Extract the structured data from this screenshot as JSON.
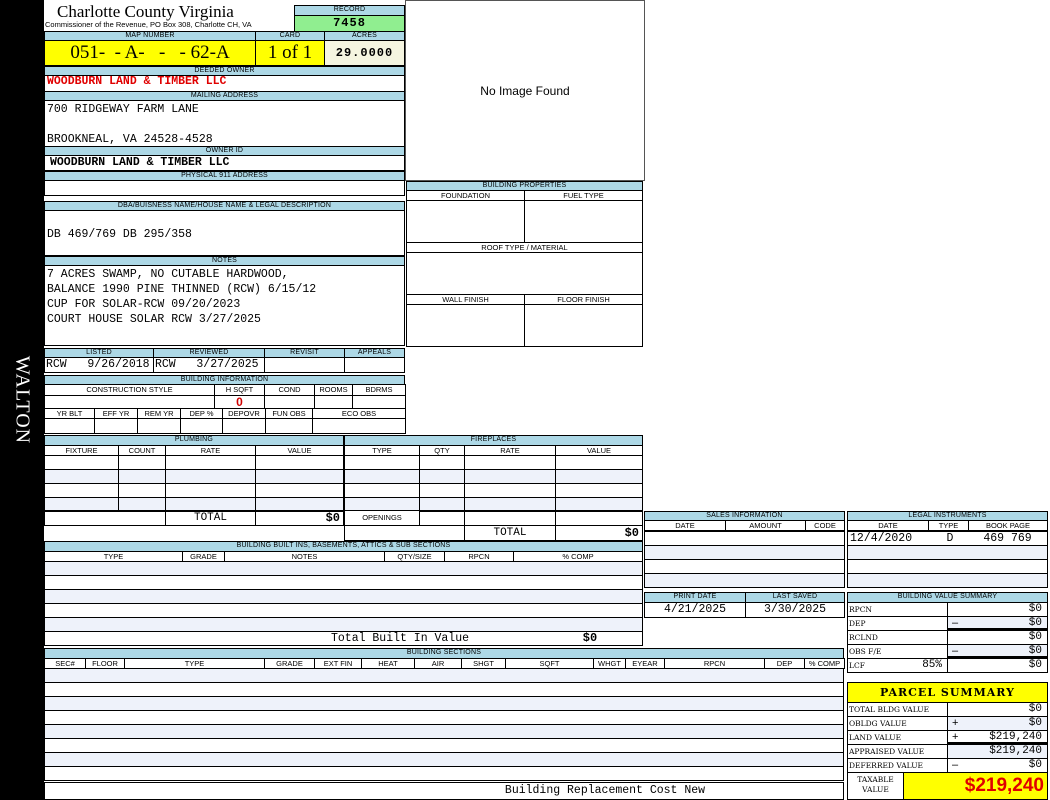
{
  "district": "WALTON",
  "header": {
    "county_title": "Charlotte County Virginia",
    "subtitle": "Commissioner of the Revenue, PO Box 308, Charlotte CH, VA",
    "record_label": "RECORD",
    "record_value": "7458"
  },
  "parcel": {
    "map_number_label": "MAP NUMBER",
    "map_number": "051-  - A-   -   - 62-A",
    "card_label": "CARD",
    "card": "1 of 1",
    "acres_label": "ACRES",
    "acres": "29.0000"
  },
  "owner": {
    "deeded_owner_label": "DEEDED OWNER",
    "deeded_owner": "WOODBURN LAND & TIMBER LLC",
    "mailing_address_label": "MAILING ADDRESS",
    "address_line1": "700 RIDGEWAY FARM LANE",
    "address_line2": "BROOKNEAL, VA 24528-4528",
    "owner_id_label": "OWNER ID",
    "owner_id": "WOODBURN LAND & TIMBER LLC",
    "physical_address_label": "PHYSICAL 911 ADDRESS",
    "physical_address": ""
  },
  "image": {
    "no_image_text": "No Image Found"
  },
  "legal_desc": {
    "label": "DBA/BUISNESS NAME/HOUSE NAME & LEGAL DESCRIPTION",
    "value": "DB 469/769 DB 295/358"
  },
  "notes": {
    "label": "NOTES",
    "lines": [
      "7 ACRES SWAMP, NO CUTABLE HARDWOOD,",
      "BALANCE 1990 PINE THINNED (RCW) 6/15/12",
      "CUP FOR SOLAR-RCW 09/20/2023",
      "COURT HOUSE SOLAR RCW 3/27/2025"
    ]
  },
  "review": {
    "listed_label": "LISTED",
    "listed": "RCW   9/26/2018",
    "reviewed_label": "REVIEWED",
    "reviewed": "RCW   3/27/2025",
    "revisit_label": "REVISIT",
    "appeals_label": "APPEALS"
  },
  "building_info": {
    "label": "BUILDING INFORMATION",
    "headers1": [
      "CONSTRUCTION STYLE",
      "H SQFT",
      "COND",
      "ROOMS",
      "BDRMS"
    ],
    "hsqft": "0",
    "headers2": [
      "YR BLT",
      "EFF YR",
      "REM YR",
      "DEP %",
      "DEPOVR",
      "FUN OBS",
      "ECO OBS"
    ]
  },
  "building_properties": {
    "label": "BUILDING PROPERTIES",
    "foundation": "FOUNDATION",
    "fuel_type": "FUEL TYPE",
    "roof": "ROOF TYPE / MATERIAL",
    "wall_finish": "WALL FINISH",
    "floor_finish": "FLOOR FINISH"
  },
  "plumbing": {
    "label": "PLUMBING",
    "columns": [
      "FIXTURE",
      "COUNT",
      "RATE",
      "VALUE"
    ],
    "total_label": "TOTAL",
    "total_value": "$0"
  },
  "fireplaces": {
    "label": "FIREPLACES",
    "columns": [
      "TYPE",
      "QTY",
      "RATE",
      "VALUE"
    ],
    "openings_label": "OPENINGS",
    "total_label": "TOTAL",
    "total_value": "$0"
  },
  "sales": {
    "label": "SALES INFORMATION",
    "columns": [
      "DATE",
      "AMOUNT",
      "CODE"
    ]
  },
  "legal_instruments": {
    "label": "LEGAL INSTRUMENTS",
    "columns": [
      "DATE",
      "TYPE",
      "BOOK PAGE"
    ],
    "rows": [
      [
        "12/4/2020",
        "D",
        "469 769"
      ]
    ]
  },
  "dates": {
    "print_date_label": "PRINT DATE",
    "print_date": "4/21/2025",
    "last_saved_label": "LAST SAVED",
    "last_saved": "3/30/2025"
  },
  "bvs": {
    "label": "BUILDING VALUE SUMMARY",
    "rows": [
      {
        "label": "RPCN",
        "sign": "",
        "value": "$0"
      },
      {
        "label": "DEP",
        "sign": "–",
        "value": "$0"
      },
      {
        "label": "RCLND",
        "sign": "",
        "value": "$0"
      },
      {
        "label": "OBS F/E",
        "sign": "–",
        "value": "$0"
      },
      {
        "label": "LCF",
        "sign": "",
        "value": "$0"
      }
    ],
    "lcf_pct": "85%"
  },
  "parcel_summary": {
    "label": "PARCEL SUMMARY",
    "rows": [
      {
        "label": "TOTAL BLDG VALUE",
        "sign": "",
        "value": "$0"
      },
      {
        "label": "OBLDG VALUE",
        "sign": "+",
        "value": "$0"
      },
      {
        "label": "LAND VALUE",
        "sign": "+",
        "value": "$219,240"
      },
      {
        "label": "APPRAISED VALUE",
        "sign": "",
        "value": "$219,240"
      },
      {
        "label": "DEFERRED VALUE",
        "sign": "–",
        "value": "$0"
      }
    ],
    "taxable_label": "TAXABLE VALUE",
    "taxable_value": "$219,240"
  },
  "built_ins": {
    "label": "BUILDING BUILT INS, BASEMENTS, ATTICS & SUB SECTIONS",
    "columns": [
      "TYPE",
      "GRADE",
      "NOTES",
      "QTY/SIZE",
      "RPCN",
      "% COMP"
    ],
    "total_label": "Total Built In Value",
    "total_value": "$0"
  },
  "sections": {
    "label": "BUILDING SECTIONS",
    "columns": [
      "SEC#",
      "FLOOR",
      "TYPE",
      "GRADE",
      "EXT FIN",
      "HEAT",
      "AIR",
      "SHGT",
      "SQFT",
      "WHGT",
      "EYEAR",
      "RPCN",
      "DEP",
      "% COMP"
    ],
    "footer_label": "Building Replacement Cost New"
  },
  "colors": {
    "header_blue": "#add8e6",
    "highlight_yellow": "#ffff00",
    "record_green": "#90ee90",
    "owner_red": "#e00000"
  }
}
